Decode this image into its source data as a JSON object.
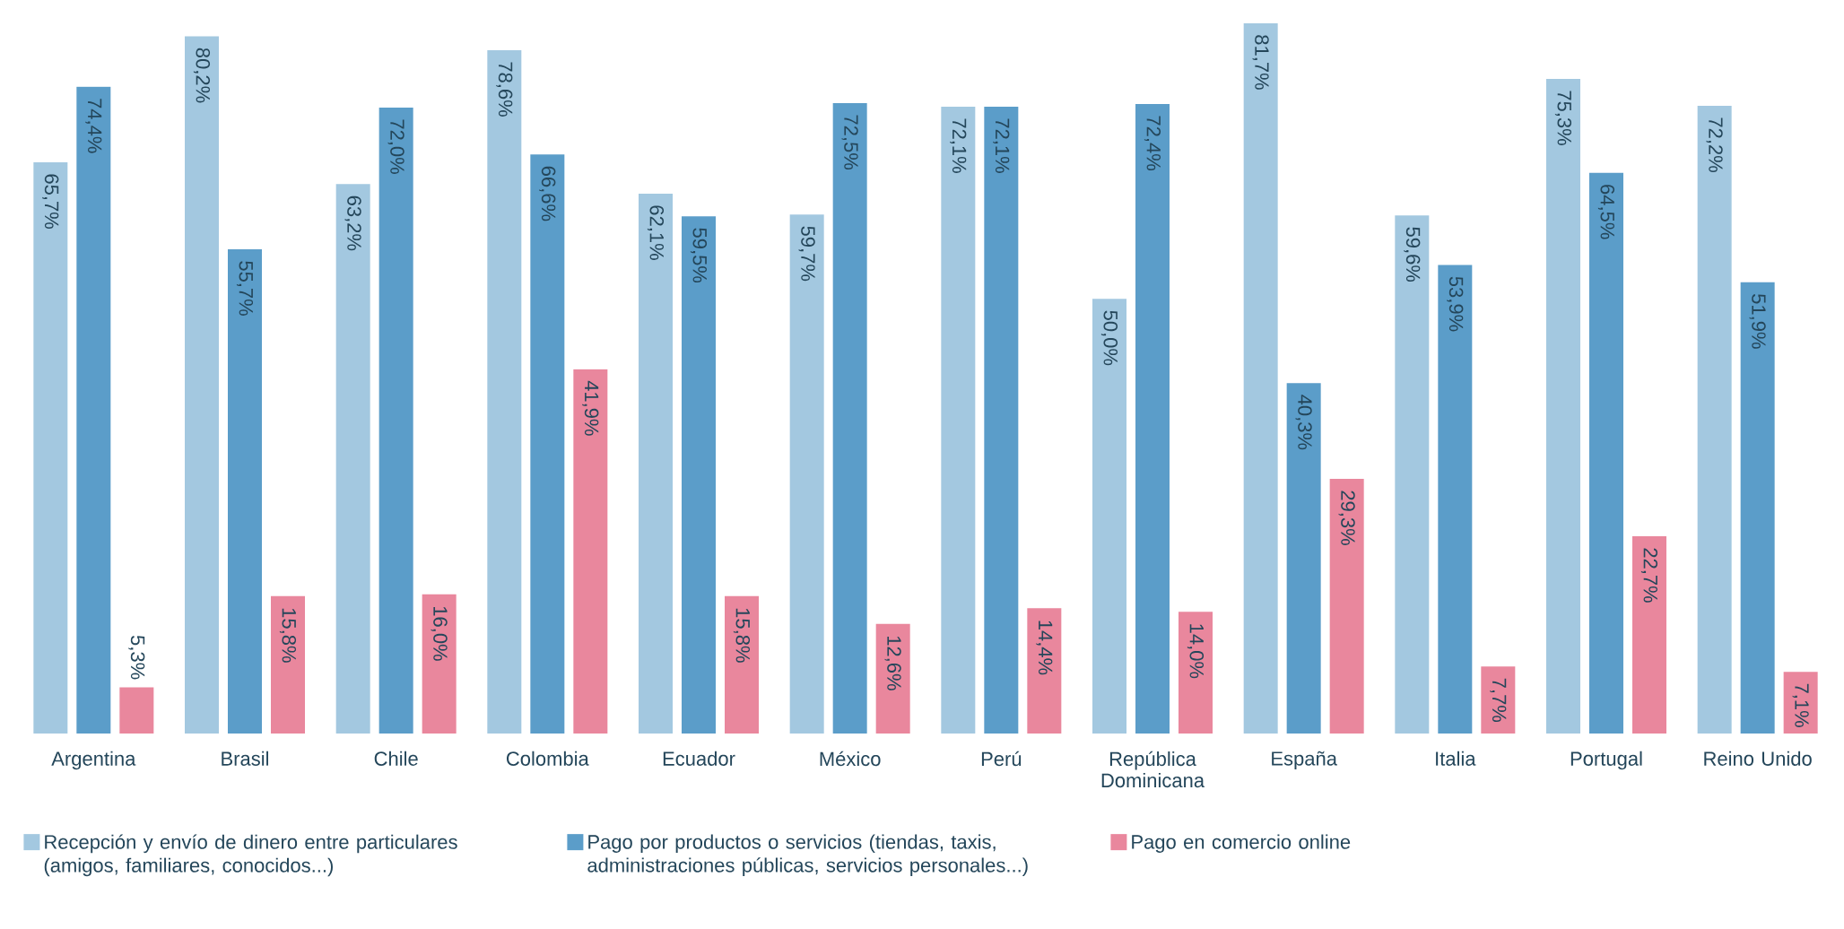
{
  "chart_data": {
    "type": "bar",
    "categories": [
      "Argentina",
      "Brasil",
      "Chile",
      "Colombia",
      "Ecuador",
      "México",
      "Perú",
      "República Dominicana",
      "España",
      "Italia",
      "Portugal",
      "Reino Unido"
    ],
    "series": [
      {
        "name": "Recepción y envío de dinero entre particulares (amigos, familiares, conocidos...)",
        "color": "#a3c8e0",
        "values": [
          65.7,
          80.2,
          63.2,
          78.6,
          62.1,
          59.7,
          72.1,
          50.0,
          81.7,
          59.6,
          75.3,
          72.2
        ],
        "value_labels": [
          "65,7%",
          "80,2%",
          "63,2%",
          "78,6%",
          "62,1%",
          "59,7%",
          "72,1%",
          "50,0%",
          "81,7%",
          "59,6%",
          "75,3%",
          "72,2%"
        ]
      },
      {
        "name": "Pago por productos o servicios (tiendas, taxis, administraciones públicas, servicios personales...)",
        "color": "#5b9dc9",
        "values": [
          74.4,
          55.7,
          72.0,
          66.6,
          59.5,
          72.5,
          72.1,
          72.4,
          40.3,
          53.9,
          64.5,
          51.9
        ],
        "value_labels": [
          "74,4%",
          "55,7%",
          "72,0%",
          "66,6%",
          "59,5%",
          "72,5%",
          "72,1%",
          "72,4%",
          "40,3%",
          "53,9%",
          "64,5%",
          "51,9%"
        ]
      },
      {
        "name": "Pago en comercio online",
        "color": "#e9879d",
        "values": [
          5.3,
          15.8,
          16.0,
          41.9,
          15.8,
          12.6,
          14.4,
          14.0,
          29.3,
          7.7,
          22.7,
          7.1
        ],
        "value_labels": [
          "5,3%",
          "15,8%",
          "16,0%",
          "41,9%",
          "15,8%",
          "12,6%",
          "14,4%",
          "14,0%",
          "29,3%",
          "7,7%",
          "22,7%",
          "7,1%"
        ]
      }
    ],
    "legend": "bottom"
  }
}
